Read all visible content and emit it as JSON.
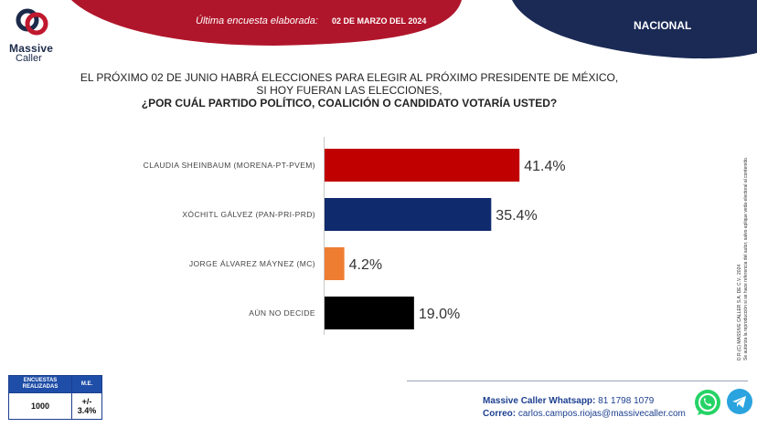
{
  "brand": {
    "logo_line1": "Massive",
    "logo_line2": "Caller"
  },
  "header": {
    "survey_label": "Última encuesta elaborada:",
    "survey_date": "02 DE MARZO DEL 2024",
    "scope": "NACIONAL",
    "colors": {
      "red": "#b0162b",
      "navy": "#1a2a55"
    }
  },
  "question": {
    "line1": "EL PRÓXIMO 02 DE JUNIO HABRÁ ELECCIONES PARA ELEGIR AL PRÓXIMO PRESIDENTE DE MÉXICO,",
    "line2": "SI HOY FUERAN LAS ELECCIONES,",
    "line3": "¿POR CUÁL PARTIDO POLÍTICO, COALICIÓN  O CANDIDATO VOTARÍA USTED?"
  },
  "chart_data": {
    "type": "bar",
    "orientation": "horizontal",
    "categories": [
      "CLAUDIA SHEINBAUM (MORENA-PT-PVEM)",
      "XÓCHITL GÁLVEZ (PAN-PRI-PRD)",
      "JORGE ÁLVAREZ MÁYNEZ (MC)",
      "AÚN NO DECIDE"
    ],
    "values": [
      41.4,
      35.4,
      4.2,
      19.0
    ],
    "value_labels": [
      "41.4%",
      "35.4%",
      "4.2%",
      "19.0%"
    ],
    "colors": [
      "#c00000",
      "#102a6e",
      "#ee7d31",
      "#000000"
    ],
    "xlim": [
      0,
      50
    ],
    "grid": false,
    "legend": "none"
  },
  "side_note": {
    "line1": "D.R.(C) MASSIVE CALLER S.A. DE C.V., 2024",
    "line2": "Se autoriza la reproducción si se hace referencia del autor, salvo aplique veda electoral al contenido."
  },
  "stats_table": {
    "col1_header": "ENCUESTAS REALIZADAS",
    "col2_header": "M.E.",
    "col1_value": "1000",
    "col2_value": "+/- 3.4%"
  },
  "contact": {
    "whatsapp_label": "Massive Caller Whatsapp:",
    "whatsapp_number": "81 1798 1079",
    "email_label": "Correo:",
    "email": "carlos.campos.riojas@massivecaller.com"
  },
  "icons": {
    "whatsapp": "whatsapp-icon",
    "telegram": "telegram-icon"
  }
}
